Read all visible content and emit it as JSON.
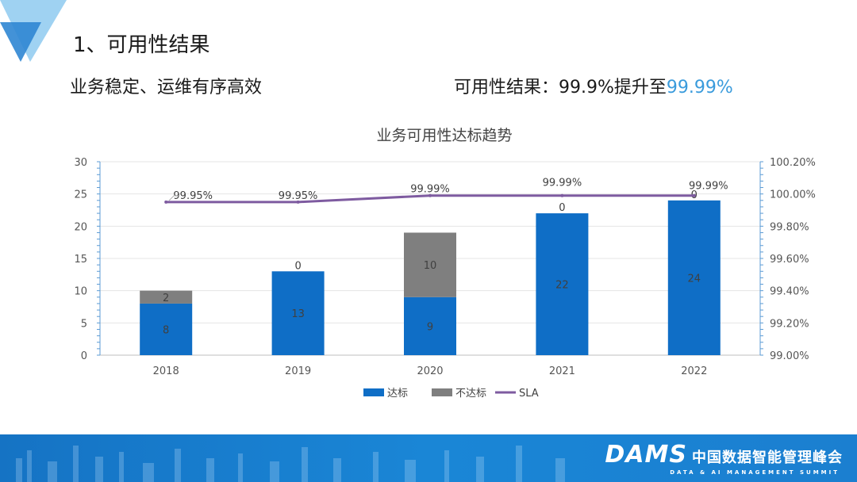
{
  "header": {
    "title": "1、可用性结果",
    "subtitle_left": "业务稳定、运维有序高效",
    "subtitle_right_prefix": "可用性结果：99.9%提升至",
    "subtitle_right_highlight": "99.99%"
  },
  "colors": {
    "achieved": "#0f6ec6",
    "not_achieved": "#7f7f7f",
    "sla": "#7e5ba0",
    "highlight": "#3a9bdc",
    "axis": "#5b9bd5"
  },
  "chart_data": {
    "type": "bar",
    "stacked": true,
    "title": "业务可用性达标趋势",
    "categories": [
      "2018",
      "2019",
      "2020",
      "2021",
      "2022"
    ],
    "series": [
      {
        "name": "达标",
        "values": [
          8,
          13,
          9,
          22,
          24
        ]
      },
      {
        "name": "不达标",
        "values": [
          2,
          0,
          10,
          0,
          0
        ]
      }
    ],
    "line_series": {
      "name": "SLA",
      "axis": "right",
      "values": [
        99.95,
        99.95,
        99.99,
        99.99,
        99.99
      ],
      "labels": [
        "99.95%",
        "99.95%",
        "99.99%",
        "99.99%",
        "99.99%"
      ]
    },
    "left_axis": {
      "min": 0,
      "max": 30,
      "ticks": [
        "0",
        "5",
        "10",
        "15",
        "20",
        "25",
        "30"
      ]
    },
    "right_axis": {
      "min": 99.0,
      "max": 100.2,
      "ticks": [
        "99.00%",
        "99.20%",
        "99.40%",
        "99.60%",
        "99.80%",
        "100.00%",
        "100.20%"
      ]
    },
    "legend": [
      "达标",
      "不达标",
      "SLA"
    ],
    "legend_position": "bottom"
  },
  "footer": {
    "brand": "DAMS",
    "brand_cn": "中国数据智能管理峰会",
    "brand_en": "DATA & AI MANAGEMENT SUMMIT"
  }
}
